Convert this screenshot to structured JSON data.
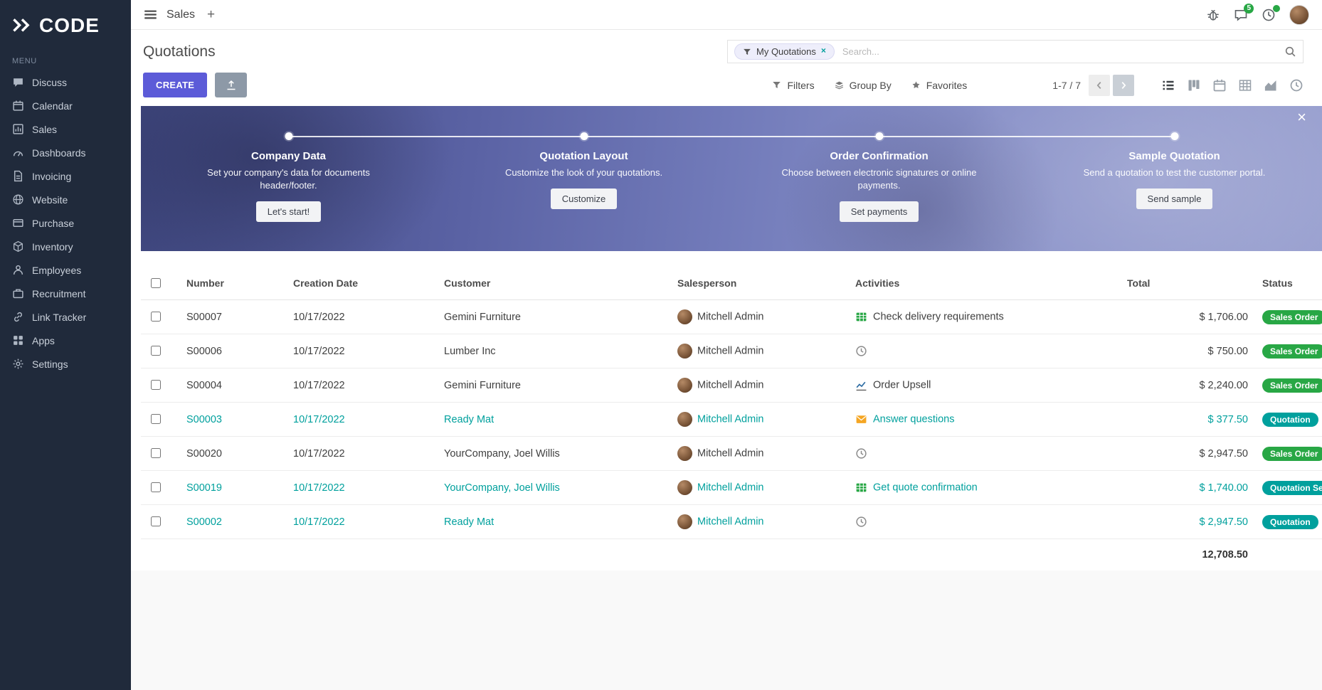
{
  "colors": {
    "primary": "#5c5bd8",
    "sidebar_bg": "#202a3b",
    "teal": "#00a09d",
    "green": "#28a745",
    "orange": "#f5a623",
    "banner_deep": "#3f477f",
    "banner_light": "#9aa1d0"
  },
  "brand": {
    "logo_text": "CODE",
    "logo_icon": "double-chevron-icon"
  },
  "topbar": {
    "app_name": "Sales",
    "plus_label": "+",
    "messages_badge": "5",
    "icons": [
      "bug-icon",
      "messages-icon",
      "activities-clock-icon",
      "user-avatar"
    ]
  },
  "sidebar": {
    "menu_label": "MENU",
    "items": [
      {
        "label": "Discuss",
        "icon": "discuss-icon"
      },
      {
        "label": "Calendar",
        "icon": "calendar-icon"
      },
      {
        "label": "Sales",
        "icon": "sales-icon"
      },
      {
        "label": "Dashboards",
        "icon": "dashboards-icon"
      },
      {
        "label": "Invoicing",
        "icon": "invoicing-icon"
      },
      {
        "label": "Website",
        "icon": "website-icon"
      },
      {
        "label": "Purchase",
        "icon": "purchase-icon"
      },
      {
        "label": "Inventory",
        "icon": "inventory-icon"
      },
      {
        "label": "Employees",
        "icon": "employees-icon"
      },
      {
        "label": "Recruitment",
        "icon": "recruitment-icon"
      },
      {
        "label": "Link Tracker",
        "icon": "link-tracker-icon"
      },
      {
        "label": "Apps",
        "icon": "apps-icon"
      },
      {
        "label": "Settings",
        "icon": "settings-icon"
      }
    ]
  },
  "control": {
    "title": "Quotations",
    "create_label": "CREATE",
    "export_icon": "upload-icon",
    "facet_icon": "filter-funnel-icon",
    "facet_label": "My Quotations",
    "facet_remove": "×",
    "search_placeholder": "Search...",
    "search_icon": "magnifier-icon",
    "filters_label": "Filters",
    "groupby_label": "Group By",
    "favorites_label": "Favorites",
    "pager": "1-7 / 7",
    "views": [
      {
        "icon": "list-view-icon",
        "active": true
      },
      {
        "icon": "kanban-view-icon",
        "active": false
      },
      {
        "icon": "calendar-view-icon",
        "active": false
      },
      {
        "icon": "pivot-view-icon",
        "active": false
      },
      {
        "icon": "graph-view-icon",
        "active": false
      },
      {
        "icon": "activity-view-icon",
        "active": false
      }
    ]
  },
  "banner": {
    "close": "×",
    "steps": [
      {
        "title": "Company Data",
        "desc": "Set your company's data for documents header/footer.",
        "button": "Let's start!"
      },
      {
        "title": "Quotation Layout",
        "desc": "Customize the look of your quotations.",
        "button": "Customize"
      },
      {
        "title": "Order Confirmation",
        "desc": "Choose between electronic signatures or online payments.",
        "button": "Set payments"
      },
      {
        "title": "Sample Quotation",
        "desc": "Send a quotation to test the customer portal.",
        "button": "Send sample"
      }
    ]
  },
  "table": {
    "headers": [
      "Number",
      "Creation Date",
      "Customer",
      "Salesperson",
      "Activities",
      "Total",
      "Status"
    ],
    "rows": [
      {
        "number": "S00007",
        "date": "10/17/2022",
        "customer": "Gemini Furniture",
        "salesperson": "Mitchell Admin",
        "activity_icon": "spreadsheet-icon",
        "activity_label": "Check delivery requirements",
        "total": "$ 1,706.00",
        "status": "Sales Order",
        "status_color": "green",
        "highlight": false
      },
      {
        "number": "S00006",
        "date": "10/17/2022",
        "customer": "Lumber Inc",
        "salesperson": "Mitchell Admin",
        "activity_icon": "clock-icon",
        "activity_label": "",
        "total": "$ 750.00",
        "status": "Sales Order",
        "status_color": "green",
        "highlight": false
      },
      {
        "number": "S00004",
        "date": "10/17/2022",
        "customer": "Gemini Furniture",
        "salesperson": "Mitchell Admin",
        "activity_icon": "chart-activity-icon",
        "activity_label": "Order Upsell",
        "total": "$ 2,240.00",
        "status": "Sales Order",
        "status_color": "green",
        "highlight": false
      },
      {
        "number": "S00003",
        "date": "10/17/2022",
        "customer": "Ready Mat",
        "salesperson": "Mitchell Admin",
        "activity_icon": "envelope-icon",
        "activity_label": "Answer questions",
        "total": "$ 377.50",
        "status": "Quotation",
        "status_color": "teal",
        "highlight": true
      },
      {
        "number": "S00020",
        "date": "10/17/2022",
        "customer": "YourCompany, Joel Willis",
        "salesperson": "Mitchell Admin",
        "activity_icon": "clock-icon",
        "activity_label": "",
        "total": "$ 2,947.50",
        "status": "Sales Order",
        "status_color": "green",
        "highlight": false
      },
      {
        "number": "S00019",
        "date": "10/17/2022",
        "customer": "YourCompany, Joel Willis",
        "salesperson": "Mitchell Admin",
        "activity_icon": "spreadsheet-icon",
        "activity_label": "Get quote confirmation",
        "total": "$ 1,740.00",
        "status": "Quotation Sent",
        "status_color": "teal",
        "highlight": true
      },
      {
        "number": "S00002",
        "date": "10/17/2022",
        "customer": "Ready Mat",
        "salesperson": "Mitchell Admin",
        "activity_icon": "clock-icon",
        "activity_label": "",
        "total": "$ 2,947.50",
        "status": "Quotation",
        "status_color": "teal",
        "highlight": true
      }
    ],
    "sum_total": "12,708.50"
  }
}
